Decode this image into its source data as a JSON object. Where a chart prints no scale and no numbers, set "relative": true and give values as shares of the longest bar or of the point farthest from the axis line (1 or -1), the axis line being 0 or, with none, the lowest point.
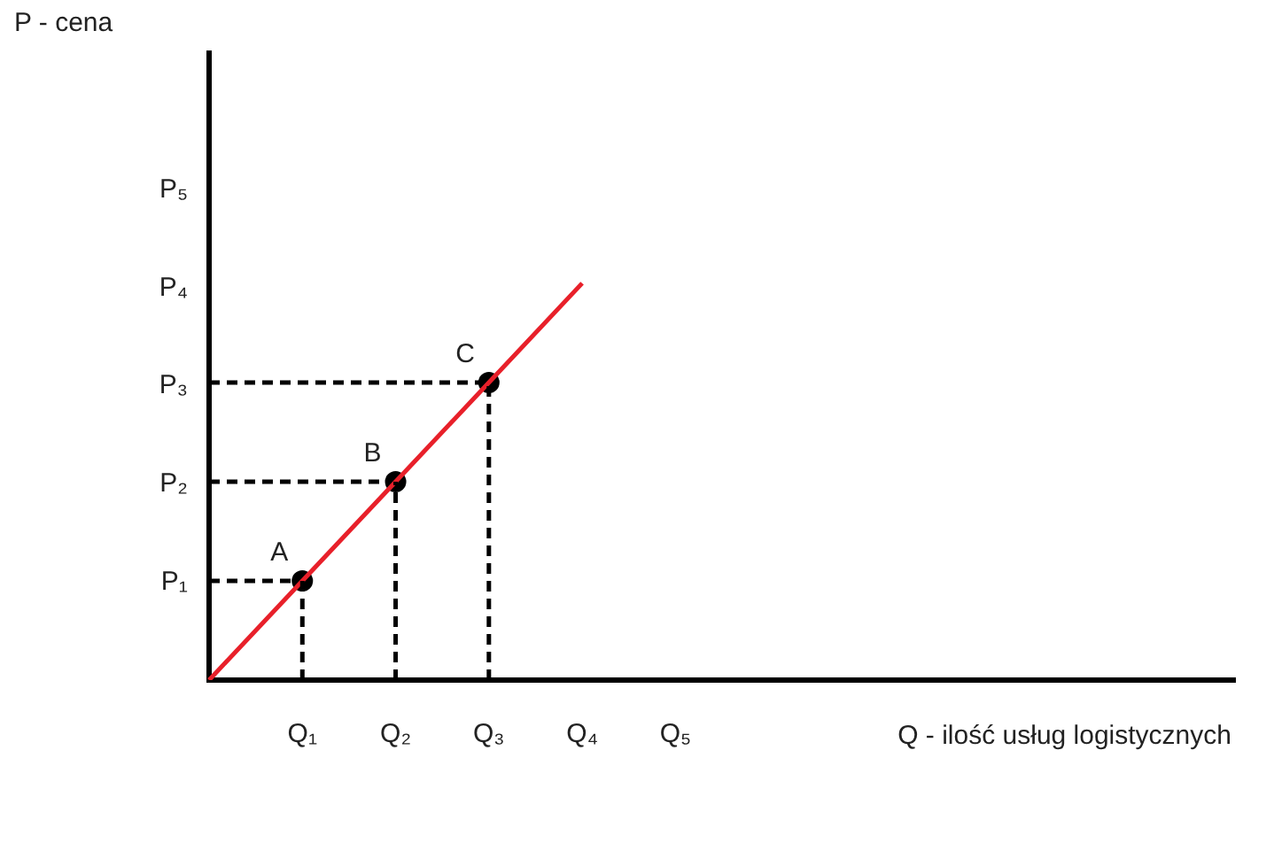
{
  "chart_data": {
    "type": "line",
    "xlabel": "Q - ilość usług logistycznych",
    "title": "P - cena",
    "relative": true,
    "legend": false,
    "categories": [
      null,
      "Q₁",
      "Q₂",
      "Q₃",
      "Q₄",
      "Q₅",
      null,
      null,
      null,
      null,
      null,
      null
    ],
    "series": [
      {
        "type": "line",
        "color": "#e8202a",
        "line_style": "solid",
        "marker": "none",
        "values": [
          0,
          0.25,
          0.5,
          0.75,
          1,
          null,
          null,
          null,
          null,
          null,
          null,
          null
        ]
      },
      {
        "type": "line",
        "color": "#000000",
        "line_style": "dashed",
        "marker": "none",
        "values": [
          0.25,
          0.25,
          null,
          null,
          null,
          null,
          null,
          null,
          null,
          null,
          null,
          null
        ]
      },
      {
        "type": "line",
        "color": "#000000",
        "line_style": "dashed",
        "marker": "none",
        "values": [
          0.5,
          0.5,
          0.5,
          null,
          null,
          null,
          null,
          null,
          null,
          null,
          null,
          null
        ]
      },
      {
        "type": "line",
        "color": "#000000",
        "line_style": "dashed",
        "marker": "none",
        "values": [
          0.75,
          0.75,
          0.75,
          0.75,
          null,
          null,
          null,
          null,
          null,
          null,
          null,
          null
        ]
      },
      {
        "type": "lollipop",
        "color": "#000000",
        "marker": "circle",
        "line_style": "dashed",
        "values": [
          null,
          0.25,
          0.5,
          0.75,
          null,
          null,
          null,
          null,
          null,
          null,
          null,
          null
        ]
      }
    ],
    "annotations": [
      {
        "text": "A",
        "x": "Q₁",
        "y": 0.25
      },
      {
        "text": "B",
        "x": "Q₂",
        "y": 0.5
      },
      {
        "text": "C",
        "x": "Q₃",
        "y": 0.75
      },
      "P₁",
      "P₂",
      "P₃",
      "P₄",
      "P₅"
    ]
  }
}
